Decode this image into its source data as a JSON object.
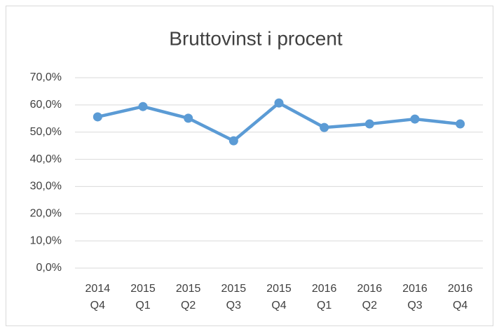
{
  "chart_data": {
    "type": "line",
    "title": "Bruttovinst i procent",
    "categories": [
      "2014 Q4",
      "2015 Q1",
      "2015 Q2",
      "2015 Q3",
      "2015 Q4",
      "2016 Q1",
      "2016 Q2",
      "2016 Q3",
      "2016 Q4"
    ],
    "series": [
      {
        "name": "Bruttovinst i procent",
        "color": "#5b9bd5",
        "values": [
          55.6,
          59.4,
          55.1,
          46.8,
          60.7,
          51.7,
          53.0,
          54.8,
          53.0
        ]
      }
    ],
    "ylim": [
      0,
      70
    ],
    "yticks": [
      {
        "value": 0,
        "label": "0,0%"
      },
      {
        "value": 10,
        "label": "10,0%"
      },
      {
        "value": 20,
        "label": "20,0%"
      },
      {
        "value": 30,
        "label": "30,0%"
      },
      {
        "value": 40,
        "label": "40,0%"
      },
      {
        "value": 50,
        "label": "50,0%"
      },
      {
        "value": 60,
        "label": "60,0%"
      },
      {
        "value": 70,
        "label": "70,0%"
      }
    ],
    "grid": true
  }
}
